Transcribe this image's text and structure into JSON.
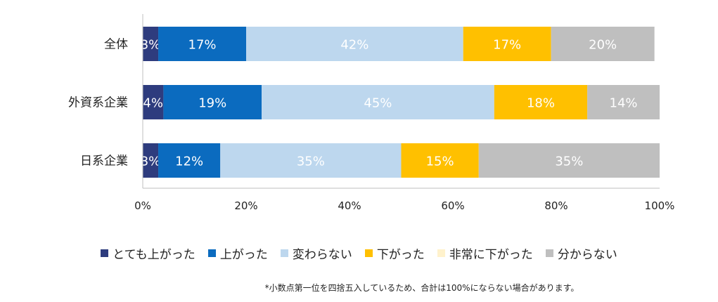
{
  "chart_data": {
    "type": "bar",
    "orientation": "horizontal",
    "stacked": true,
    "categories": [
      "全体",
      "外資系企業",
      "日系企業"
    ],
    "series": [
      {
        "name": "とても上がった",
        "values": [
          3,
          4,
          3
        ],
        "labels": [
          "3%",
          "4%",
          "3%"
        ],
        "color": "#2e3c7e",
        "label_color": "#ffffff"
      },
      {
        "name": "上がった",
        "values": [
          17,
          19,
          12
        ],
        "labels": [
          "17%",
          "19%",
          "12%"
        ],
        "color": "#0b6bbf",
        "label_color": "#ffffff"
      },
      {
        "name": "変わらない",
        "values": [
          42,
          45,
          35
        ],
        "labels": [
          "42%",
          "45%",
          "35%"
        ],
        "color": "#bdd7ee",
        "label_color": "#ffffff"
      },
      {
        "name": "下がった",
        "values": [
          17,
          18,
          15
        ],
        "labels": [
          "17%",
          "18%",
          "15%"
        ],
        "color": "#ffc000",
        "label_color": "#ffffff"
      },
      {
        "name": "非常に下がった",
        "values": [
          0,
          0,
          0
        ],
        "labels": [
          "",
          "",
          ""
        ],
        "color": "#fff2cc",
        "label_color": "#ffffff"
      },
      {
        "name": "分からない",
        "values": [
          20,
          14,
          35
        ],
        "labels": [
          "20%",
          "14%",
          "35%"
        ],
        "color": "#bfbfbf",
        "label_color": "#ffffff"
      }
    ],
    "x_ticks": [
      "0%",
      "20%",
      "40%",
      "60%",
      "80%",
      "100%"
    ],
    "xlim": [
      0,
      100
    ],
    "grid": false,
    "legend_position": "bottom",
    "footnote": "*小数点第一位を四捨五入しているため、合計は100%にならない場合があります。"
  }
}
